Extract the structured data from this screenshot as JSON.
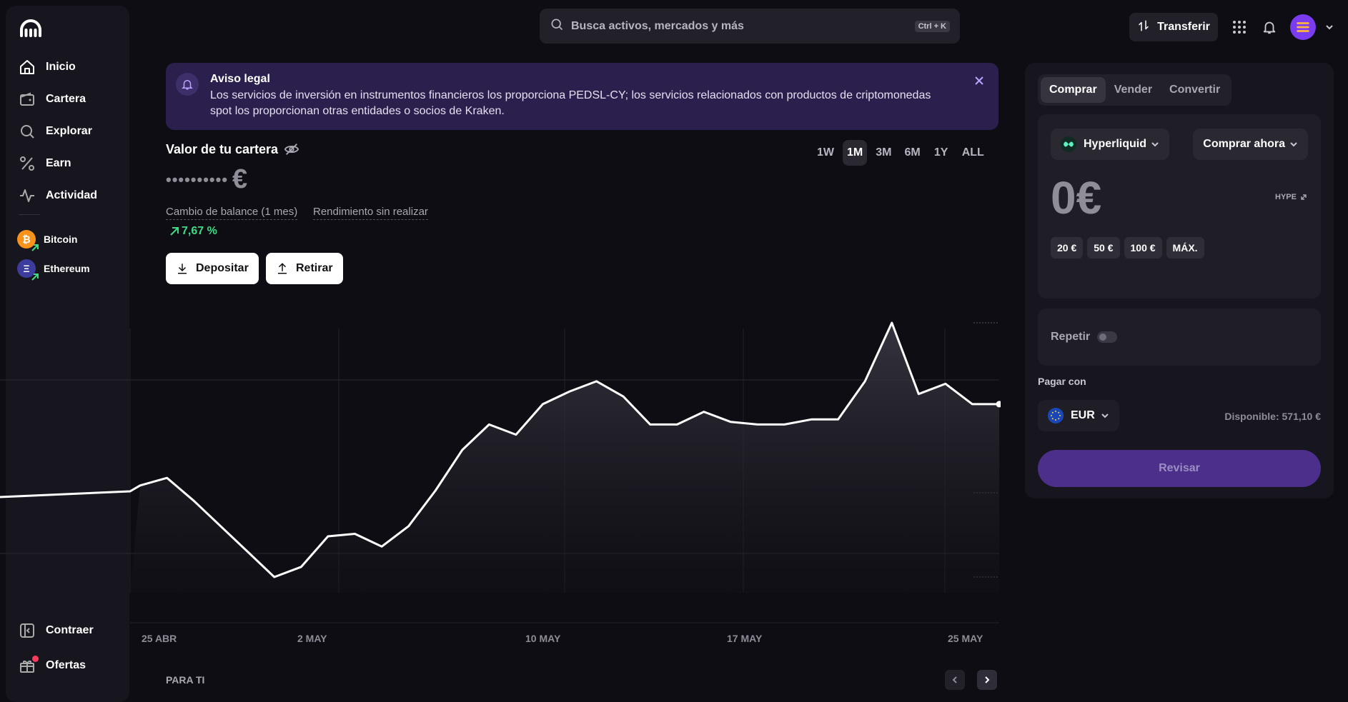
{
  "nav": {
    "items": [
      {
        "label": "Inicio",
        "icon": "home-icon"
      },
      {
        "label": "Cartera",
        "icon": "wallet-icon"
      },
      {
        "label": "Explorar",
        "icon": "search-icon"
      },
      {
        "label": "Earn",
        "icon": "percent-icon"
      },
      {
        "label": "Actividad",
        "icon": "activity-icon"
      }
    ],
    "assets": [
      {
        "label": "Bitcoin",
        "symbol": "₿",
        "color": "#f7931a"
      },
      {
        "label": "Ethereum",
        "symbol": "Ξ",
        "color": "#3c3c9d"
      }
    ],
    "bottom": [
      {
        "label": "Contraer",
        "icon": "collapse-icon"
      },
      {
        "label": "Ofertas",
        "icon": "gift-icon"
      }
    ]
  },
  "search": {
    "placeholder": "Busca activos, mercados y más",
    "shortcut": "Ctrl + K"
  },
  "header": {
    "transfer_label": "Transferir"
  },
  "notice": {
    "title": "Aviso legal",
    "body": "Los servicios de inversión en instrumentos financieros los proporciona PEDSL-CY; los servicios relacionados con productos de criptomonedas spot los proporcionan otras entidades o socios de Kraken."
  },
  "portfolio": {
    "title": "Valor de tu cartera",
    "masked_value": "••••••••••",
    "currency": "€",
    "metric_balance": "Cambio de balance (1 mes)",
    "metric_unrealized": "Rendimiento sin realizar",
    "change": "7,67 %",
    "deposit_label": "Depositar",
    "withdraw_label": "Retirar",
    "ranges": [
      "1W",
      "1M",
      "3M",
      "6M",
      "1Y",
      "ALL"
    ],
    "active_range": "1M"
  },
  "chart_data": {
    "type": "area",
    "x_labels": [
      "25 ABR",
      "2 MAY",
      "10 MAY",
      "17 MAY",
      "25 MAY"
    ],
    "y_relative": [
      0.36,
      0.39,
      0.3,
      0.2,
      0.1,
      0.0,
      0.04,
      0.16,
      0.17,
      0.12,
      0.2,
      0.34,
      0.5,
      0.6,
      0.56,
      0.68,
      0.73,
      0.77,
      0.71,
      0.6,
      0.6,
      0.65,
      0.61,
      0.6,
      0.6,
      0.62,
      0.62,
      0.77,
      1.0,
      0.72,
      0.76,
      0.68,
      0.68
    ],
    "colors": {
      "line": "#ffffff"
    }
  },
  "section": {
    "para_ti": "PARA TI"
  },
  "trade": {
    "tabs": [
      "Comprar",
      "Vender",
      "Convertir"
    ],
    "active_tab": "Comprar",
    "asset": "Hyperliquid",
    "action": "Comprar ahora",
    "amount": "0€",
    "unit": "HYPE",
    "chips": [
      "20 €",
      "50 €",
      "100 €",
      "MÁX."
    ],
    "repeat_label": "Repetir",
    "pay_with_label": "Pagar con",
    "pay_currency": "EUR",
    "available": "Disponible: 571,10 €",
    "review_label": "Revisar"
  },
  "colors": {
    "accent": "#7a3cf0",
    "positive": "#3ddc84",
    "notice_bg": "#2b1f4d"
  }
}
